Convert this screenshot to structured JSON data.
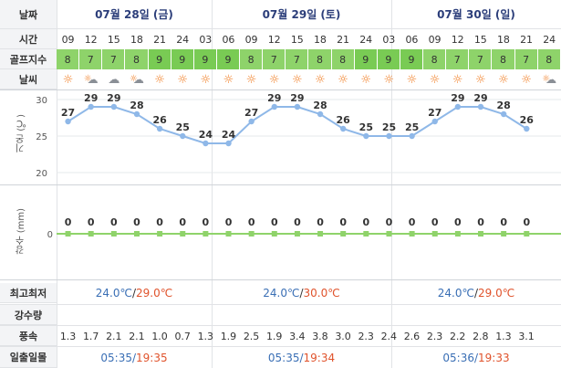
{
  "labels": {
    "date": "날짜",
    "time": "시간",
    "golf_index": "골프지수",
    "weather": "날씨",
    "temp_axis": "기온 (℃)",
    "rain_axis": "강수 (mm)",
    "min_max": "최고최저",
    "precip_amount": "강수량",
    "wind_speed": "풍속",
    "sunrise_sunset": "일출일몰"
  },
  "days": [
    {
      "title": "07월 28일 (금)",
      "min": "24.0℃",
      "max": "29.0℃",
      "sunrise": "05:35",
      "sunset": "19:35"
    },
    {
      "title": "07월 29일 (토)",
      "min": "24.0℃",
      "max": "30.0℃",
      "sunrise": "05:35",
      "sunset": "19:34"
    },
    {
      "title": "07월 30일 (일)",
      "min": "24.0℃",
      "max": "29.0℃",
      "sunrise": "05:36",
      "sunset": "19:33"
    }
  ],
  "sep": "/",
  "hours": [
    "09",
    "12",
    "15",
    "18",
    "21",
    "24",
    "03",
    "06",
    "09",
    "12",
    "15",
    "18",
    "21",
    "24",
    "03",
    "06",
    "09",
    "12",
    "15",
    "18",
    "21",
    "24"
  ],
  "golf": [
    "8",
    "7",
    "7",
    "8",
    "9",
    "9",
    "9",
    "9",
    "8",
    "7",
    "7",
    "8",
    "8",
    "9",
    "9",
    "9",
    "8",
    "7",
    "7",
    "8",
    "7",
    "8"
  ],
  "weather_icons": [
    "sun",
    "sun-cloud",
    "cloud",
    "sun-cloud",
    "sun",
    "sun",
    "sun",
    "sun",
    "sun",
    "sun",
    "sun",
    "sun",
    "sun",
    "sun",
    "sun",
    "sun",
    "sun",
    "sun",
    "sun",
    "sun",
    "sun",
    "sun-cloud"
  ],
  "wind": [
    "1.3",
    "1.7",
    "2.1",
    "2.1",
    "1.0",
    "0.7",
    "1.3",
    "1.9",
    "2.5",
    "1.9",
    "3.4",
    "3.8",
    "3.0",
    "2.3",
    "2.4",
    "2.6",
    "2.3",
    "2.2",
    "2.8",
    "1.3",
    "3.1"
  ],
  "colors": {
    "temp_line": "#8fb8e8",
    "rain_line": "#8fd36a",
    "sun_icon": "#f07a1e"
  },
  "chart_data": [
    {
      "type": "line",
      "x": [
        "09",
        "12",
        "15",
        "18",
        "21",
        "24",
        "03",
        "06",
        "09",
        "12",
        "15",
        "18",
        "21",
        "24",
        "03",
        "06",
        "09",
        "12",
        "15",
        "18",
        "21"
      ],
      "series": [
        {
          "values": [
            27,
            29,
            29,
            28,
            26,
            25,
            24,
            24,
            27,
            29,
            29,
            28,
            26,
            25,
            25,
            25,
            27,
            29,
            29,
            28,
            26
          ]
        }
      ],
      "ylim": [
        20,
        30
      ],
      "yticks": [
        "20",
        "25",
        "30"
      ],
      "ylabel": "기온 (℃)"
    },
    {
      "type": "line",
      "x": [
        "09",
        "12",
        "15",
        "18",
        "21",
        "24",
        "03",
        "06",
        "09",
        "12",
        "15",
        "18",
        "21",
        "24",
        "03",
        "06",
        "09",
        "12",
        "15",
        "18",
        "21"
      ],
      "series": [
        {
          "values": [
            0,
            0,
            0,
            0,
            0,
            0,
            0,
            0,
            0,
            0,
            0,
            0,
            0,
            0,
            0,
            0,
            0,
            0,
            0,
            0,
            0
          ]
        }
      ],
      "yticks": [
        "0"
      ],
      "ylabel": "강수 (mm)"
    }
  ]
}
